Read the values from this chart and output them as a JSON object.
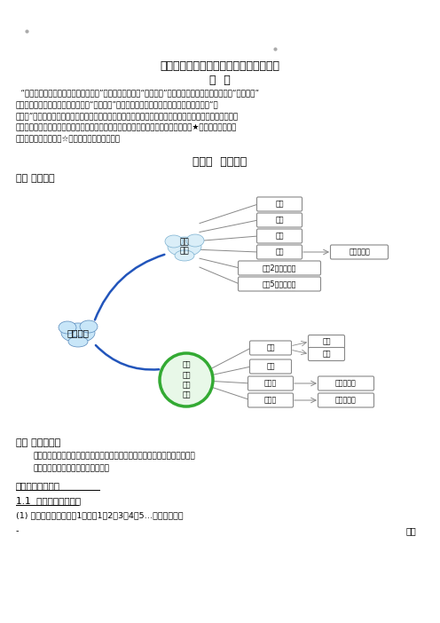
{
  "title": "初中数学知识点梳理《沪教市北综合版》",
  "subtitle": "导  言",
  "intro_line1": "“初中数学知识点梳理沪教市北综合版”为编者依据沪教版“初中数学”和市北初级中学贵优生培训教材“初中数学”",
  "intro_line2": "的紧密合编辑而成，既吸取了沪教版“初中数学”侧重根底、知识全面的特点，也吸取了市北版“初",
  "intro_line3": "中数学”拓展广度、延伸深度的特点，表现了两者紧密有机融合，保证了初中数学知识点梳理的根底性、系统",
  "intro_line4": "性、全面性、拓展性和概括性，能为初中数学的学习提供较好的知识导帖。文字学「【★】」为部分市北版",
  "intro_line5": "的知课堂，练习学「【☆】」为部也为市北版堂。",
  "chapter_title": "第一章  数的整除",
  "section1": "一、 知识构造",
  "section2": "二、 重点和难点",
  "zhongdian": "重点：会正确地分解素因数，并会求两个正整数的最大公因数和最小公倍数。",
  "nandian": "难点：求两个正整数的最小公倍数。",
  "jie_title": "第一节整数和整除",
  "subsection": "1.1  整数和整除的意义",
  "point1": "(1) 正整数：用来表示符1个数的1，2，3，4，5…叫做正整数。",
  "youxuan": "优选",
  "bg_color": "#ffffff"
}
